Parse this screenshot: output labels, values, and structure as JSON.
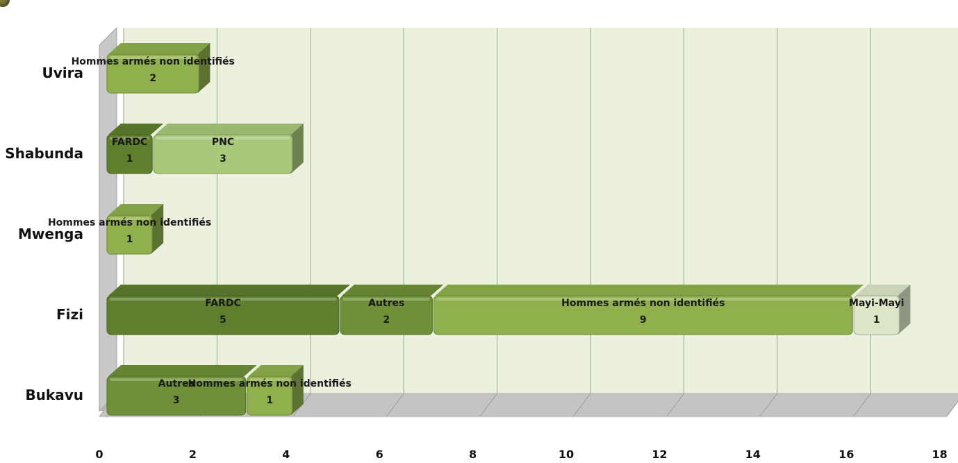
{
  "chart_data": {
    "type": "bar",
    "orientation": "horizontal",
    "stacked": true,
    "categories": [
      "Uvira",
      "Shabunda",
      "Mwenga",
      "Fizi",
      "Bukavu"
    ],
    "bars": [
      {
        "category": "Uvira",
        "segments": [
          {
            "name": "Hommes armés non identifiés",
            "value": 2,
            "color": "#8fb04c"
          }
        ]
      },
      {
        "category": "Shabunda",
        "segments": [
          {
            "name": "FARDC",
            "value": 1,
            "color": "#5f7f2e"
          },
          {
            "name": "PNC",
            "value": 3,
            "color": "#a9c87a"
          }
        ]
      },
      {
        "category": "Mwenga",
        "segments": [
          {
            "name": "Hommes armés non identifiés",
            "value": 1,
            "color": "#8fb04c"
          }
        ]
      },
      {
        "category": "Fizi",
        "segments": [
          {
            "name": "FARDC",
            "value": 5,
            "color": "#5f7f2e"
          },
          {
            "name": "Autres",
            "value": 2,
            "color": "#6f9038"
          },
          {
            "name": "Hommes armés non identifiés",
            "value": 9,
            "color": "#8fb04c"
          },
          {
            "name": "Mayi-Mayi",
            "value": 1,
            "color": "#dce6c6"
          }
        ]
      },
      {
        "category": "Bukavu",
        "segments": [
          {
            "name": "Autres",
            "value": 3,
            "color": "#6f9038"
          },
          {
            "name": "Hommes armés non identifiés",
            "value": 1,
            "color": "#8fb04c"
          }
        ]
      }
    ],
    "xlim": [
      0,
      18
    ],
    "xticks": [
      0,
      2,
      4,
      6,
      8,
      10,
      12,
      14,
      16,
      18
    ],
    "grid": true,
    "plot_background": "#ecf0df",
    "title": "",
    "xlabel": "",
    "ylabel": ""
  }
}
